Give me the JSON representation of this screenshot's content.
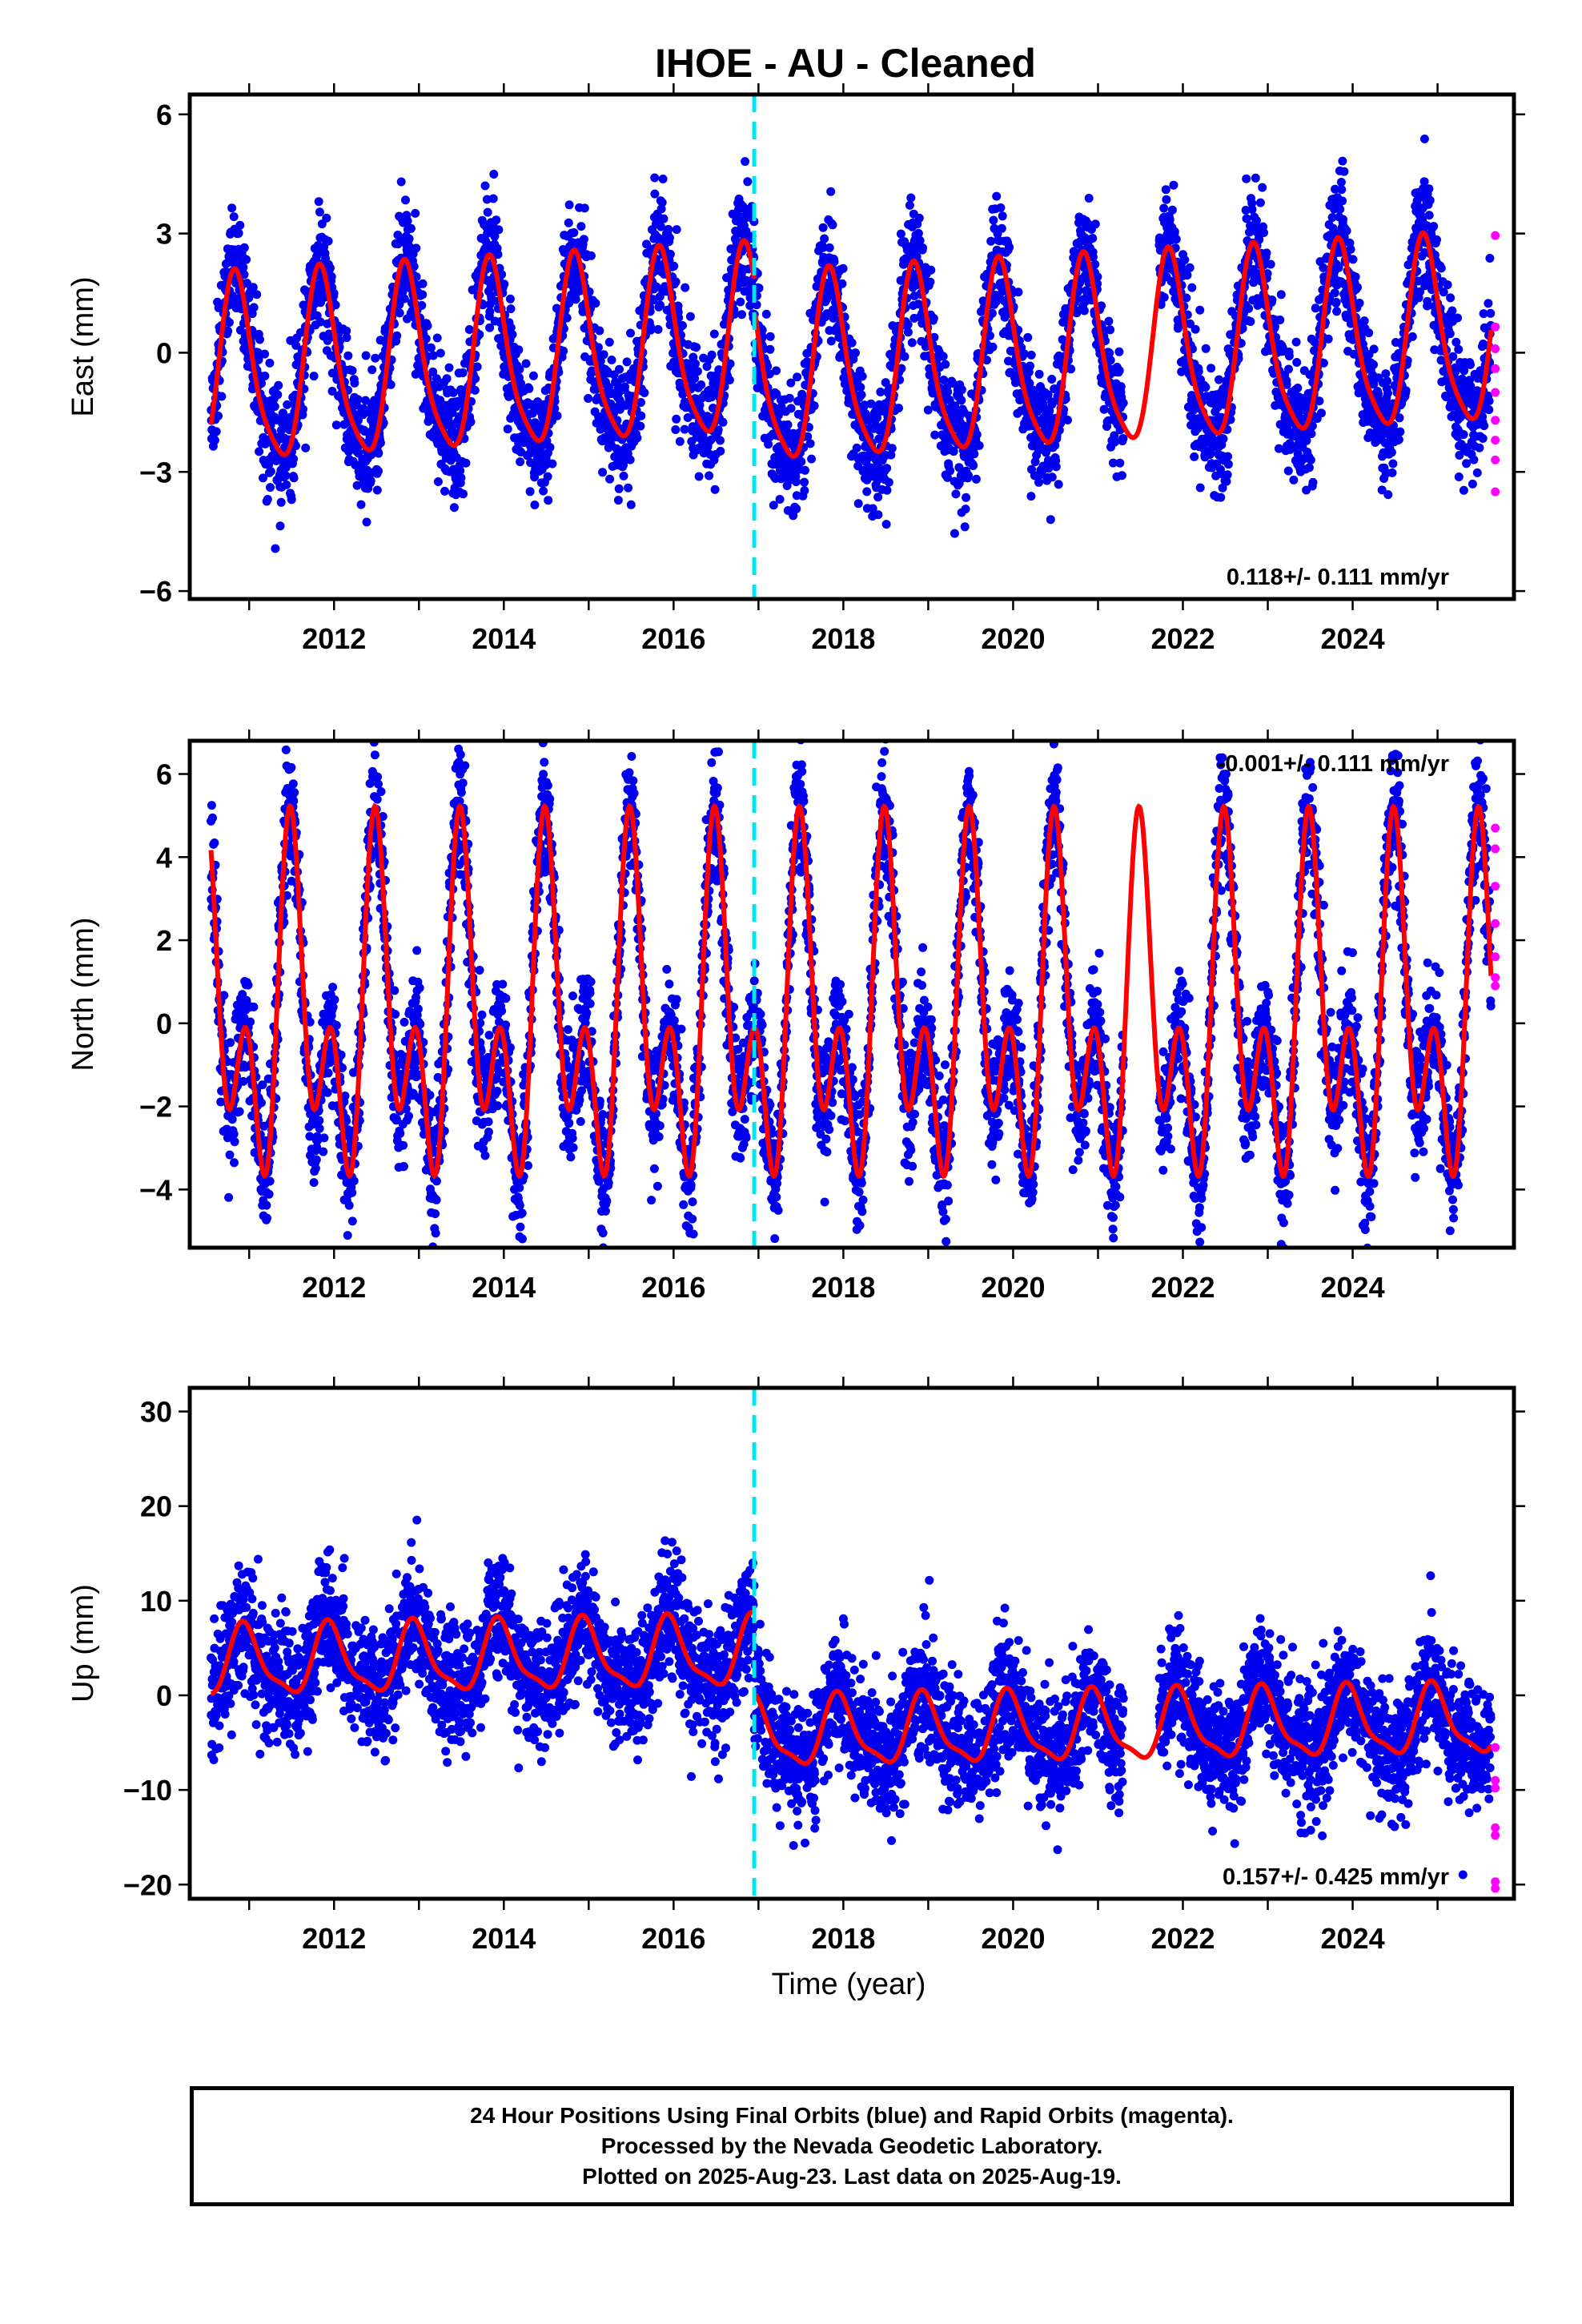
{
  "chart_data": {
    "title": "IHOE  - AU - Cleaned",
    "type": "scatter",
    "xlabel": "Time (year)",
    "xlim": [
      2010.3,
      2025.9
    ],
    "x_ticks": [
      2012,
      2014,
      2016,
      2018,
      2020,
      2022,
      2024
    ],
    "equipment_change_year": 2016.95,
    "last_data": "2025-08-19",
    "colors": {
      "final": "#0000ee",
      "rapid": "#ff00ff",
      "model": "#ff0000",
      "break": "#00e5ee"
    },
    "panels": [
      {
        "name": "east",
        "ylabel": "East (mm)",
        "ylim": [
          -6.2,
          6.5
        ],
        "y_ticks": [
          6,
          3,
          0,
          -3,
          -6
        ],
        "y_tick_labels": [
          "6",
          "3",
          "0",
          "−3",
          "−6"
        ],
        "rate_text": "0.118+/- 0.111 mm/yr",
        "rate_position": "bottom-right",
        "velocity_mm_yr": 0.118,
        "seasonal": {
          "amplitude": 2.3,
          "phase_year_fraction": 0.85,
          "harmonic2": 0.2
        },
        "offsets_before_after": [
          0.25,
          -0.5
        ],
        "noise_sd": 0.75,
        "rapid_points": [
          2.95,
          0.65,
          0.1,
          -0.4,
          -1.0,
          -1.7,
          -2.2,
          -2.7,
          -3.5
        ]
      },
      {
        "name": "north",
        "ylabel": "North (mm)",
        "ylim": [
          -5.4,
          6.8
        ],
        "y_ticks": [
          6,
          4,
          2,
          0,
          -2,
          -4
        ],
        "y_tick_labels": [
          "6",
          "4",
          "2",
          "0",
          "−2",
          "−4"
        ],
        "rate_text": "-0.001+/- 0.111 mm/yr",
        "rate_position": "top-right",
        "velocity_mm_yr": -0.001,
        "seasonal": {
          "amplitude": 2.8,
          "phase_year_fraction": 0.52,
          "harmonic2": 0.9
        },
        "offsets_before_after": [
          0.0,
          0.0
        ],
        "noise_sd": 0.75,
        "rapid_points": [
          4.7,
          4.2,
          3.3,
          2.4,
          1.6,
          1.1,
          0.9
        ]
      },
      {
        "name": "up",
        "ylabel": "Up (mm)",
        "ylim": [
          -21.5,
          32.5
        ],
        "y_ticks": [
          30,
          20,
          10,
          0,
          -10,
          -20
        ],
        "y_tick_labels": [
          "30",
          "20",
          "10",
          "0",
          "−10",
          "−20"
        ],
        "rate_text": "0.157+/- 0.425 mm/yr",
        "rate_position": "bottom-right",
        "velocity_mm_yr": 0.157,
        "seasonal": {
          "amplitude": 3.5,
          "phase_year_fraction": 0.95,
          "harmonic2": 0.3
        },
        "offsets_before_after": [
          4.5,
          -4.0
        ],
        "noise_sd": 3.2,
        "rapid_points": [
          -5.5,
          -9.0,
          -9.8,
          -14.0,
          -14.8,
          -19.7,
          -20.4
        ]
      }
    ]
  },
  "footer": {
    "line1": "24 Hour Positions Using Final Orbits (blue) and Rapid Orbits (magenta).",
    "line2": "Processed by the Nevada Geodetic Laboratory.",
    "line3": "Plotted on 2025-Aug-23. Last data on 2025-Aug-19."
  }
}
